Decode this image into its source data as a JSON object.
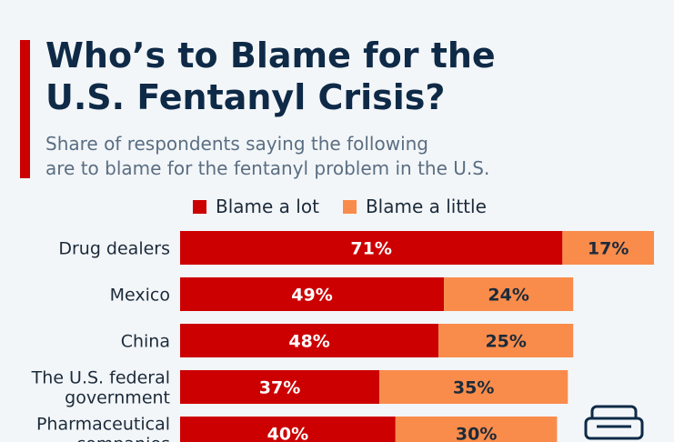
{
  "header": {
    "title": "Who’s to Blame for the\nU.S. Fentanyl Crisis?",
    "subtitle": "Share of respondents saying the following\nare to blame for the fentanyl problem in the U.S."
  },
  "legend": {
    "items": [
      {
        "label": "Blame a lot",
        "color": "#cc0000"
      },
      {
        "label": "Blame a little",
        "color": "#fa8c4b"
      }
    ]
  },
  "decor": {
    "icon": "sofa-icon"
  },
  "chart_data": {
    "type": "bar",
    "orientation": "horizontal",
    "stacked": true,
    "title": "Who’s to Blame for the U.S. Fentanyl Crisis?",
    "subtitle": "Share of respondents saying the following are to blame for the fentanyl problem in the U.S.",
    "categories": [
      [
        "Drug dealers"
      ],
      [
        "Mexico"
      ],
      [
        "China"
      ],
      [
        "The U.S. federal",
        "government"
      ],
      [
        "Pharmaceutical",
        "companies"
      ]
    ],
    "series": [
      {
        "name": "Blame a lot",
        "color": "#cc0000",
        "label_color": "#ffffff",
        "values": [
          71,
          49,
          48,
          37,
          40
        ]
      },
      {
        "name": "Blame a little",
        "color": "#fa8c4b",
        "label_color": "#1c2b3a",
        "values": [
          17,
          24,
          25,
          35,
          30
        ]
      }
    ],
    "value_suffix": "%",
    "xlim": [
      0,
      88
    ],
    "grid": false,
    "legend_position": "top"
  }
}
